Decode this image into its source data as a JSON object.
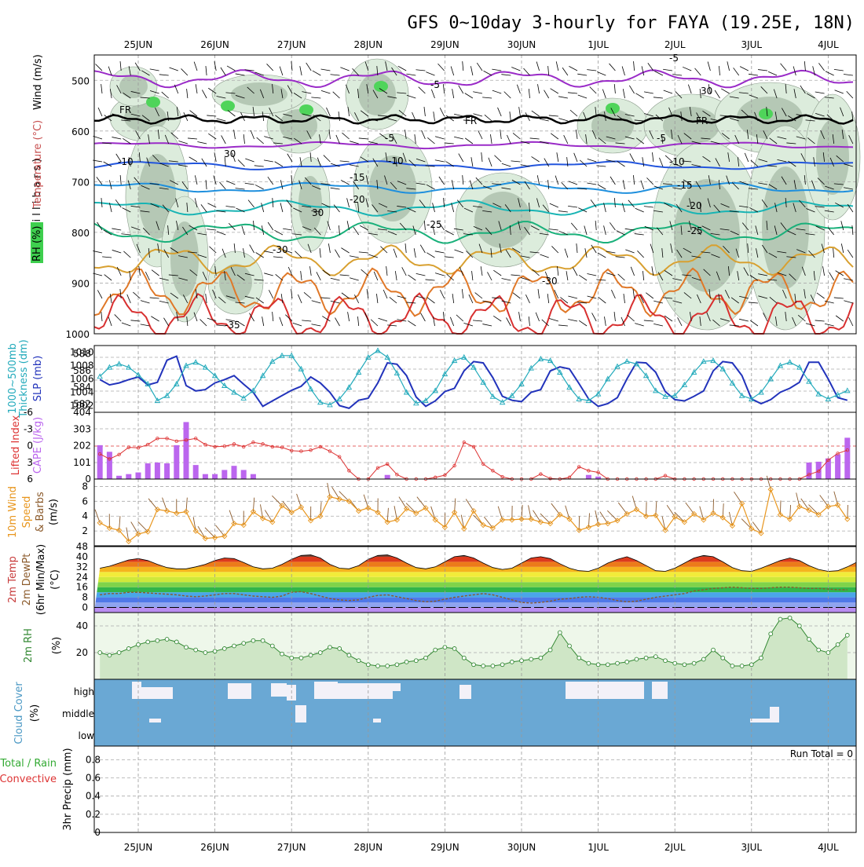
{
  "title": "GFS 0~10day 3-hourly for FAYA (19.25E, 18N)",
  "dates": [
    "25JUN",
    "26JUN",
    "27JUN",
    "28JUN",
    "29JUN",
    "30JUN",
    "1JUL",
    "2JUL",
    "3JUL",
    "4JUL"
  ],
  "colors": {
    "wind": "#000000",
    "temp": "#c83c3c",
    "rh": "#3aa64a",
    "slp": "#2233bb",
    "thick": "#22aabb",
    "li": "#dd3333",
    "cape": "#bb66ee",
    "wind10": "#e8961e",
    "rh2m": "#338833",
    "cloud": "#6aa8d4",
    "precip_total": "#33aa33",
    "precip_conv": "#dd3333"
  },
  "panels": {
    "upper": {
      "label_rh": "RH (%)",
      "label_temp": "Temperature (°C)",
      "label_wind": "Wind (m/s)",
      "label_mb": "( m i l l i b a r s )",
      "pressure_ticks": [
        "500",
        "600",
        "700",
        "800",
        "900",
        "1000"
      ],
      "contour_labels": [
        "-5",
        "-5",
        "FR",
        "FR",
        "FR",
        "-5",
        "-5",
        "-10",
        "-10",
        "-10",
        "-15",
        "-15",
        "-20",
        "-20",
        "-25",
        "-25",
        "-30",
        "-30",
        "-35",
        "30",
        "30",
        "30"
      ]
    },
    "slp": {
      "label_thick": "1000~500mb\nThickness (dm)",
      "label_slp": "SLP (mb)",
      "left_ticks": [
        "588",
        "586",
        "584",
        "582"
      ],
      "right_ticks": [
        "1010",
        "1008",
        "1006",
        "1004",
        "1002"
      ]
    },
    "cape": {
      "label_li": "Lifted Index",
      "label_cape": "CAPE (J/kg)",
      "li_ticks": [
        "-6",
        "-3",
        "0",
        "3",
        "6"
      ],
      "cape_ticks": [
        "404",
        "303",
        "202",
        "101",
        "0"
      ]
    },
    "wind10": {
      "label_1": "10m Wind",
      "label_2": "Speed",
      "label_3": "& Barbs",
      "label_unit": "(m/s)",
      "ticks": [
        "8",
        "6",
        "4",
        "2"
      ]
    },
    "temp2m": {
      "label_1": "2m Temp",
      "label_2": "2m DewPt",
      "label_3": "(6hr Min/Max)",
      "label_unit": "(°C)",
      "ticks": [
        "48",
        "40",
        "32",
        "24",
        "16",
        "8",
        "0"
      ]
    },
    "rh2m": {
      "label": "2m RH",
      "label_unit": "(%)",
      "ticks": [
        "40",
        "20"
      ]
    },
    "cloud": {
      "label": "Cloud Cover",
      "label_unit": "(%)",
      "levels": [
        "high",
        "middle",
        "low"
      ]
    },
    "precip": {
      "label_1": "Total / Rain",
      "label_2": "Convective",
      "label_3": "3hr Precip (mm)",
      "run_total": "Run Total = 0",
      "ticks": [
        "0.8",
        "0.6",
        "0.4",
        "0.2",
        "0"
      ]
    }
  },
  "chart_data": [
    {
      "type": "line",
      "title": "SLP / 1000~500mb Thickness",
      "x_label": "time (3-hourly steps from 24JUN12Z)",
      "series": [
        {
          "name": "SLP (mb)",
          "values": [
            1005.9,
            1005.1,
            1005.4,
            1005.9,
            1006.3,
            1005.1,
            1005.5,
            1008.8,
            1009.4,
            1005.0,
            1004.2,
            1004.4,
            1005.4,
            1005.9,
            1006.5,
            1005.2,
            1004.0,
            1001.9,
            1002.7,
            1003.5,
            1004.3,
            1004.9,
            1006.3,
            1005.4,
            1004.0,
            1002.0,
            1001.6,
            1002.8,
            1003.1,
            1005.4,
            1008.4,
            1008.2,
            1006.5,
            1003.3,
            1001.9,
            1002.7,
            1004.1,
            1004.6,
            1007.2,
            1008.6,
            1008.4,
            1006.2,
            1003.4,
            1002.8,
            1002.6,
            1004.0,
            1004.4,
            1007.2,
            1007.8,
            1007.5,
            1005.3,
            1003.0,
            1001.9,
            1002.3,
            1003.2,
            1006.0,
            1008.5,
            1008.4,
            1007.0,
            1004.1,
            1002.9,
            1002.7,
            1003.4,
            1004.2,
            1007.2,
            1008.6,
            1008.4,
            1006.5,
            1003.0,
            1002.3,
            1002.9,
            1004.0,
            1004.6,
            1005.5,
            1008.5,
            1008.5,
            1006.0,
            1003.2,
            1002.8,
            1003.5,
            1005.5,
            1009.6,
            1010.8,
            1009.8,
            1007.1,
            1004.0,
            1004.2,
            1006.0,
            1008.2,
            1008.0,
            1009.0
          ]
        },
        {
          "name": "1000~500mb Thickness (dm)",
          "values": [
            585.3,
            586.4,
            586.8,
            586.4,
            585.5,
            584.4,
            582.4,
            583.0,
            584.4,
            586.6,
            587.0,
            586.4,
            585.4,
            584.2,
            583.4,
            582.7,
            583.6,
            585.4,
            587.1,
            587.8,
            587.8,
            586.2,
            583.8,
            582.2,
            581.9,
            582.6,
            584.0,
            585.8,
            587.6,
            588.4,
            587.6,
            585.7,
            583.4,
            582.1,
            582.4,
            583.6,
            585.6,
            587.2,
            587.6,
            586.4,
            584.6,
            582.9,
            582.2,
            583.0,
            584.4,
            586.3,
            587.4,
            587.2,
            585.8,
            584.0,
            582.6,
            582.4,
            583.2,
            585.0,
            586.5,
            587.1,
            586.8,
            585.4,
            583.6,
            582.9,
            583.0,
            584.3,
            585.8,
            587.1,
            587.2,
            586.2,
            584.5,
            583.0,
            582.6,
            583.4,
            585.0,
            586.6,
            587.0,
            586.4,
            584.7,
            583.2,
            582.6,
            583.1,
            583.6,
            584.2,
            583.5,
            582.0,
            581.6,
            582.6,
            584.4,
            585.9,
            585.2,
            583.6,
            582.6,
            582.0,
            582.3
          ]
        }
      ],
      "y_left_range": [
        581,
        589
      ],
      "y_right_range": [
        1001,
        1011
      ]
    },
    {
      "type": "bar",
      "title": "CAPE (J/kg) / Lifted Index",
      "series": [
        {
          "name": "CAPE (J/kg)",
          "values": [
            205,
            165,
            20,
            30,
            40,
            95,
            100,
            95,
            205,
            345,
            85,
            30,
            30,
            55,
            80,
            55,
            30,
            0,
            0,
            0,
            0,
            0,
            0,
            0,
            0,
            0,
            0,
            0,
            0,
            0,
            25,
            0,
            0,
            0,
            0,
            0,
            0,
            0,
            0,
            0,
            0,
            0,
            0,
            0,
            0,
            0,
            0,
            0,
            0,
            0,
            0,
            25,
            15,
            0,
            0,
            0,
            0,
            0,
            0,
            0,
            0,
            0,
            0,
            0,
            0,
            0,
            0,
            0,
            0,
            0,
            0,
            0,
            0,
            0,
            100,
            105,
            125,
            150,
            250,
            230,
            215,
            175,
            160,
            130,
            85,
            140,
            170,
            230,
            310,
            345,
            235,
            210,
            175,
            95,
            80,
            75
          ]
        },
        {
          "name": "Lifted Index",
          "values": [
            1.5,
            2.4,
            1.6,
            0.3,
            0.4,
            -0.2,
            -1.3,
            -1.3,
            -0.8,
            -1.0,
            -1.3,
            -0.2,
            0.2,
            0.1,
            -0.3,
            0.2,
            -0.6,
            -0.3,
            0.2,
            0.3,
            0.9,
            1.0,
            0.8,
            0.2,
            1.0,
            2.0,
            4.5,
            6.0,
            6.0,
            4.0,
            3.3,
            5.2,
            6.0,
            6.0,
            6.0,
            5.7,
            5.3,
            3.6,
            -0.6,
            0.2,
            3.3,
            4.5,
            5.6,
            6.0,
            6.0,
            6.0,
            5.1,
            5.9,
            6.0,
            5.7,
            3.8,
            4.5,
            4.8,
            6.0,
            6.0,
            6.0,
            6.0,
            6.0,
            6.0,
            5.4,
            6.0,
            6.0,
            6.0,
            6.0,
            6.0,
            6.0,
            6.0,
            6.0,
            6.0,
            6.0,
            6.0,
            6.0,
            6.0,
            6.0,
            5.2,
            4.6,
            2.6,
            1.4,
            0.8,
            0.2,
            0.0,
            -1.0,
            -1.5,
            -2.2,
            -2.3,
            -1.2,
            -2.0,
            -1.8,
            -0.3,
            0.9,
            -0.5,
            -1.1,
            -2.4,
            -2.1,
            -1.1,
            -0.4,
            -0.6,
            0.3,
            1.4,
            1.4,
            1.1,
            2.8,
            5.0,
            5.6,
            6.0
          ]
        }
      ],
      "y_range_cape": [
        0,
        404
      ],
      "y_range_li": [
        6,
        -6
      ]
    },
    {
      "type": "line",
      "title": "10m Wind Speed (m/s)",
      "series": [
        {
          "name": "10m wind speed",
          "values": [
            3.1,
            2.4,
            2.1,
            0.6,
            1.6,
            1.9,
            4.9,
            4.7,
            4.4,
            4.6,
            2.0,
            1.0,
            1.1,
            1.3,
            3.0,
            2.8,
            4.6,
            3.7,
            3.2,
            5.4,
            4.5,
            5.2,
            3.4,
            4.0,
            6.6,
            6.3,
            6.0,
            4.7,
            5.1,
            4.5,
            3.2,
            3.5,
            5.0,
            4.4,
            5.1,
            3.5,
            2.5,
            4.5,
            2.3,
            4.7,
            2.8,
            2.4,
            3.5,
            3.5,
            3.6,
            3.6,
            3.2,
            3.0,
            4.2,
            3.6,
            2.1,
            2.5,
            2.9,
            3.0,
            3.4,
            4.3,
            4.9,
            4.0,
            4.1,
            2.1,
            3.9,
            3.2,
            4.3,
            3.5,
            4.4,
            3.8,
            2.7,
            5.7,
            2.3,
            1.7,
            7.6,
            4.2,
            3.6,
            5.3,
            4.8,
            4.2,
            5.3,
            5.5,
            3.6,
            5.4,
            4.4,
            4.6,
            5.6,
            5.1,
            4.9,
            5.3,
            7.5,
            6.8,
            5.6,
            6.1,
            5.1,
            4.6,
            3.4,
            2.1,
            1.1,
            3.7
          ]
        }
      ],
      "y_range": [
        0,
        8
      ]
    },
    {
      "type": "area",
      "title": "2m Temp / 2m DewPt (°C)",
      "series": [
        {
          "name": "2m Temp",
          "values": [
            31,
            32.5,
            35,
            37.5,
            38.5,
            37,
            34,
            31.5,
            30.5,
            30.5,
            32,
            34,
            37,
            39,
            38.5,
            35.5,
            32,
            30.5,
            31,
            34,
            38,
            41,
            41.5,
            39,
            34,
            31,
            30.5,
            33,
            38,
            41,
            41.5,
            39,
            35,
            31.5,
            30.5,
            32,
            36,
            40,
            41,
            39,
            35,
            31.5,
            30,
            31,
            35,
            39,
            40,
            38.5,
            34.5,
            31,
            29,
            28.5,
            31,
            35,
            38,
            40,
            37,
            33,
            29,
            28.5,
            31,
            35,
            39,
            41,
            40,
            36,
            31.5,
            29,
            28.5,
            31,
            34,
            37,
            39,
            37,
            33,
            30,
            28.5,
            29,
            32,
            35.5,
            37.5,
            36,
            33,
            30,
            28.5,
            29.5,
            31.5,
            34,
            35.5,
            34,
            31,
            29,
            28.5,
            30.5,
            31
          ]
        },
        {
          "name": "2m DewPt",
          "values": [
            10,
            11,
            11,
            12,
            12,
            11.5,
            11,
            10.5,
            10,
            9,
            8.5,
            9,
            10,
            11,
            11,
            10,
            9,
            8.5,
            8,
            9,
            12,
            12.5,
            11,
            9,
            7,
            6,
            5.5,
            6,
            8,
            9.5,
            10,
            8.5,
            7,
            5.5,
            4.5,
            5,
            6.5,
            8,
            9,
            10,
            11,
            10,
            8,
            6,
            4,
            3.5,
            4,
            5,
            6.5,
            7,
            8,
            8.5,
            8,
            7,
            5.5,
            4.5,
            5,
            6.5,
            8,
            9,
            10,
            11,
            13,
            14,
            15,
            15.5,
            16,
            15.5,
            15,
            15,
            15.5,
            16,
            16,
            15.5,
            15,
            15,
            14.5,
            14,
            14,
            14,
            14.5,
            15,
            14.5,
            14.5,
            14.5,
            15
          ]
        }
      ],
      "y_range": [
        -4,
        48
      ]
    },
    {
      "type": "area",
      "title": "2m RH (%)",
      "series": [
        {
          "name": "2m RH",
          "values": [
            20,
            18,
            20,
            23,
            26,
            28,
            29,
            30,
            28,
            24,
            22,
            20,
            21,
            23,
            25,
            27,
            29,
            29,
            25,
            19,
            16,
            16,
            18,
            20,
            24,
            23,
            18,
            14,
            11,
            10,
            10,
            11,
            13,
            14,
            16,
            22,
            24,
            23,
            16,
            11,
            10,
            10,
            11,
            13,
            14,
            15,
            16,
            22,
            35,
            25,
            16,
            12,
            11,
            11,
            12,
            13,
            15,
            16,
            17,
            14,
            12,
            11,
            12,
            15,
            22,
            16,
            10,
            10,
            11,
            16,
            34,
            45,
            46,
            40,
            30,
            22,
            20,
            26,
            33,
            35,
            40,
            43,
            37,
            28,
            22,
            20,
            22,
            28,
            36,
            40,
            42,
            33
          ]
        }
      ],
      "y_range": [
        0,
        50
      ]
    }
  ]
}
